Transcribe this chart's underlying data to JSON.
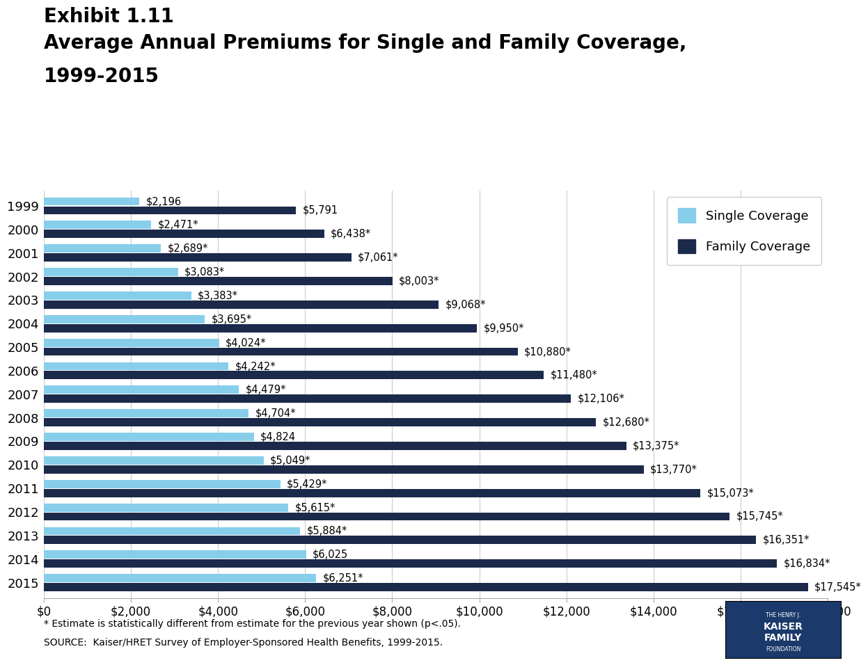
{
  "title_line1": "Exhibit 1.11",
  "title_line2": "Average Annual Premiums for Single and Family Coverage,",
  "title_line3": "1999-2015",
  "years": [
    "1999",
    "2000",
    "2001",
    "2002",
    "2003",
    "2004",
    "2005",
    "2006",
    "2007",
    "2008",
    "2009",
    "2010",
    "2011",
    "2012",
    "2013",
    "2014",
    "2015"
  ],
  "single_values": [
    2196,
    2471,
    2689,
    3083,
    3383,
    3695,
    4024,
    4242,
    4479,
    4704,
    4824,
    5049,
    5429,
    5615,
    5884,
    6025,
    6251
  ],
  "family_values": [
    5791,
    6438,
    7061,
    8003,
    9068,
    9950,
    10880,
    11480,
    12106,
    12680,
    13375,
    13770,
    15073,
    15745,
    16351,
    16834,
    17545
  ],
  "single_labels": [
    "$2,196",
    "$2,471*",
    "$2,689*",
    "$3,083*",
    "$3,383*",
    "$3,695*",
    "$4,024*",
    "$4,242*",
    "$4,479*",
    "$4,704*",
    "$4,824",
    "$5,049*",
    "$5,429*",
    "$5,615*",
    "$5,884*",
    "$6,025",
    "$6,251*"
  ],
  "family_labels": [
    "$5,791",
    "$6,438*",
    "$7,061*",
    "$8,003*",
    "$9,068*",
    "$9,950*",
    "$10,880*",
    "$11,480*",
    "$12,106*",
    "$12,680*",
    "$13,375*",
    "$13,770*",
    "$15,073*",
    "$15,745*",
    "$16,351*",
    "$16,834*",
    "$17,545*"
  ],
  "single_color": "#87CEEB",
  "family_color": "#1B2A4A",
  "xlim": [
    0,
    18000
  ],
  "xticks": [
    0,
    2000,
    4000,
    6000,
    8000,
    10000,
    12000,
    14000,
    16000,
    18000
  ],
  "xtick_labels": [
    "$0",
    "$2,000",
    "$4,000",
    "$6,000",
    "$8,000",
    "$10,000",
    "$12,000",
    "$14,000",
    "$16,000",
    "$18,000"
  ],
  "legend_single": "Single Coverage",
  "legend_family": "Family Coverage",
  "footnote1": "* Estimate is statistically different from estimate for the previous year shown (p<.05).",
  "footnote2": "SOURCE:  Kaiser/HRET Survey of Employer-Sponsored Health Benefits, 1999-2015.",
  "bg_color": "#FFFFFF",
  "text_color": "#000000",
  "title1_fontsize": 20,
  "title2_fontsize": 20,
  "axis_fontsize": 12,
  "label_fontsize": 10.5,
  "year_fontsize": 13
}
